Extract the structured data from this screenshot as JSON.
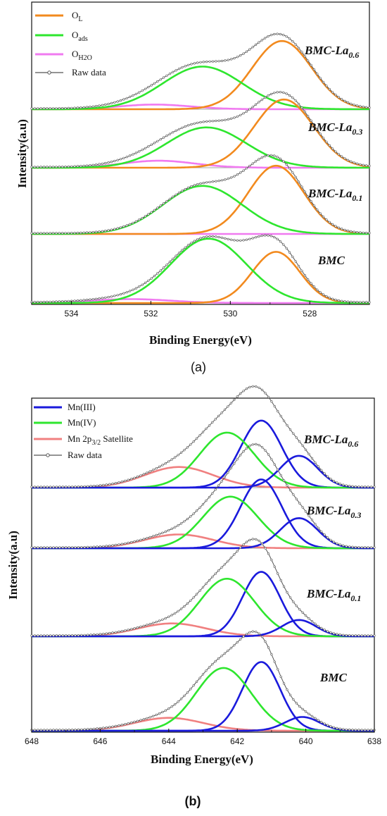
{
  "figure": {
    "caption_a": "(a)",
    "caption_b": "(b)"
  },
  "colors": {
    "O_L": "#f28a1e",
    "O_ads": "#2ee62e",
    "O_H2O": "#f07af0",
    "Mn_III": "#1a1adc",
    "Mn_IV": "#2ee62e",
    "Mn_sat": "#f08080",
    "raw": "#555555"
  },
  "chart_data": [
    {
      "type": "line",
      "panel": "a",
      "xlabel": "Binding Energy(eV)",
      "ylabel": "Intensity(a.u)",
      "xlim": [
        535,
        526.5
      ],
      "x_reversed": true,
      "xticks": [
        "534",
        "532",
        "530",
        "528"
      ],
      "legend": [
        {
          "key": "O_L",
          "label": "O",
          "sub": "L"
        },
        {
          "key": "O_ads",
          "label": "O",
          "sub": "ads"
        },
        {
          "key": "O_H2O",
          "label": "O",
          "sub": "H2O"
        },
        {
          "key": "raw",
          "label": "Raw data",
          "sub": ""
        }
      ],
      "legend_position": "top-left",
      "samples": [
        {
          "label": "BMC-La",
          "sub": "0.6",
          "components": [
            {
              "key": "O_L",
              "center": 528.7,
              "height": 0.88,
              "width": 0.75
            },
            {
              "key": "O_ads",
              "center": 530.7,
              "height": 0.55,
              "width": 1.0
            },
            {
              "key": "O_H2O",
              "center": 531.9,
              "height": 0.06,
              "width": 0.9
            }
          ]
        },
        {
          "label": "BMC-La",
          "sub": "0.3",
          "components": [
            {
              "key": "O_L",
              "center": 528.65,
              "height": 0.88,
              "width": 0.75
            },
            {
              "key": "O_ads",
              "center": 530.6,
              "height": 0.52,
              "width": 1.0
            },
            {
              "key": "O_H2O",
              "center": 531.8,
              "height": 0.09,
              "width": 0.9
            }
          ]
        },
        {
          "label": "BMC-La",
          "sub": "0.1",
          "components": [
            {
              "key": "O_L",
              "center": 528.85,
              "height": 0.88,
              "width": 0.7
            },
            {
              "key": "O_ads",
              "center": 530.7,
              "height": 0.62,
              "width": 1.0
            },
            {
              "key": "O_H2O",
              "center": 532.0,
              "height": 0.0,
              "width": 0.9
            }
          ]
        },
        {
          "label": "BMC",
          "sub": "",
          "components": [
            {
              "key": "O_L",
              "center": 528.85,
              "height": 0.66,
              "width": 0.6
            },
            {
              "key": "O_ads",
              "center": 530.55,
              "height": 0.83,
              "width": 0.95
            },
            {
              "key": "O_H2O",
              "center": 532.5,
              "height": 0.05,
              "width": 1.0
            }
          ]
        }
      ]
    },
    {
      "type": "line",
      "panel": "b",
      "xlabel": "Binding Energy(eV)",
      "ylabel": "Intensity(a.u)",
      "xlim": [
        648,
        638
      ],
      "x_reversed": true,
      "xticks": [
        "648",
        "646",
        "644",
        "642",
        "640",
        "638"
      ],
      "legend": [
        {
          "key": "Mn_III",
          "label": "Mn(III)",
          "sub": "",
          "after": ""
        },
        {
          "key": "Mn_IV",
          "label": "Mn(IV)",
          "sub": "",
          "after": ""
        },
        {
          "key": "Mn_sat",
          "label": "Mn 2p",
          "sub": "3/2",
          "after": " Satellite"
        },
        {
          "key": "raw",
          "label": "Raw data",
          "sub": "",
          "after": ""
        }
      ],
      "legend_position": "top-left",
      "samples": [
        {
          "label": "BMC-La",
          "sub": "0.6",
          "components": [
            {
              "key": "Mn_III",
              "center": 641.3,
              "height": 0.78,
              "width": 0.6
            },
            {
              "key": "Mn_IV",
              "center": 642.3,
              "height": 0.64,
              "width": 0.8
            },
            {
              "key": "Mn_III",
              "center": 640.2,
              "height": 0.37,
              "width": 0.55
            },
            {
              "key": "Mn_sat",
              "center": 643.7,
              "height": 0.24,
              "width": 1.0
            }
          ]
        },
        {
          "label": "BMC-La",
          "sub": "0.3",
          "components": [
            {
              "key": "Mn_III",
              "center": 641.3,
              "height": 0.8,
              "width": 0.6
            },
            {
              "key": "Mn_IV",
              "center": 642.2,
              "height": 0.6,
              "width": 0.8
            },
            {
              "key": "Mn_III",
              "center": 640.2,
              "height": 0.35,
              "width": 0.55
            },
            {
              "key": "Mn_sat",
              "center": 643.7,
              "height": 0.16,
              "width": 1.0
            }
          ]
        },
        {
          "label": "BMC-La",
          "sub": "0.1",
          "components": [
            {
              "key": "Mn_III",
              "center": 641.3,
              "height": 0.75,
              "width": 0.55
            },
            {
              "key": "Mn_IV",
              "center": 642.3,
              "height": 0.67,
              "width": 0.8
            },
            {
              "key": "Mn_III",
              "center": 640.2,
              "height": 0.19,
              "width": 0.5
            },
            {
              "key": "Mn_sat",
              "center": 643.9,
              "height": 0.15,
              "width": 1.0
            }
          ]
        },
        {
          "label": "BMC",
          "sub": "",
          "components": [
            {
              "key": "Mn_III",
              "center": 641.3,
              "height": 0.8,
              "width": 0.55
            },
            {
              "key": "Mn_IV",
              "center": 642.4,
              "height": 0.73,
              "width": 0.8
            },
            {
              "key": "Mn_III",
              "center": 640.1,
              "height": 0.16,
              "width": 0.5
            },
            {
              "key": "Mn_sat",
              "center": 644.0,
              "height": 0.15,
              "width": 1.0
            }
          ]
        }
      ]
    }
  ]
}
